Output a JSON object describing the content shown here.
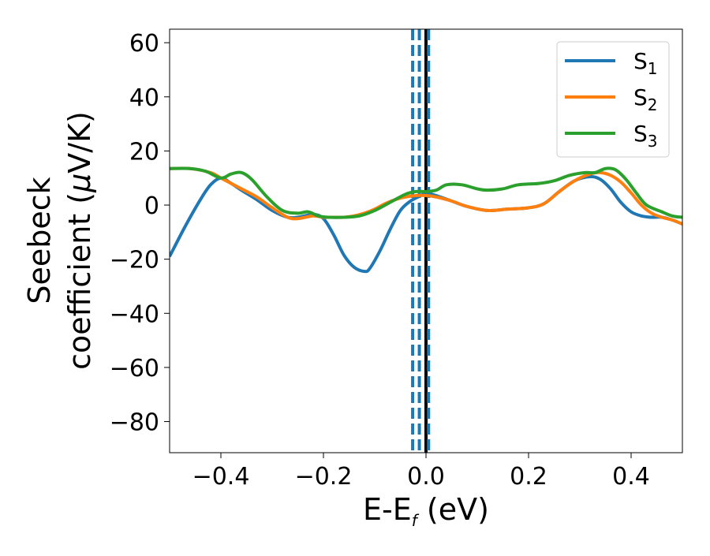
{
  "chart_data": {
    "type": "line",
    "xlabel": "E-E",
    "xlabel_sub": "f",
    "xlabel_tail": " (eV)",
    "ylabel_line1": "Seebeck",
    "ylabel_line2_prefix": "coefficient  (",
    "ylabel_line2_mu": "μ",
    "ylabel_line2_suffix": "V/K)",
    "xlim": [
      -0.5,
      0.5
    ],
    "ylim": [
      -91.5,
      65
    ],
    "xticks": [
      -0.4,
      -0.2,
      0.0,
      0.2,
      0.4
    ],
    "xtick_labels": [
      "−0.4",
      "−0.2",
      "0.0",
      "0.2",
      "0.4"
    ],
    "yticks": [
      -80,
      -60,
      -40,
      -20,
      0,
      20,
      40,
      60
    ],
    "ytick_labels": [
      "−80",
      "−60",
      "−40",
      "−20",
      "0",
      "20",
      "40",
      "60"
    ],
    "grid": false,
    "legend_placement": "top-right",
    "vertical_lines": [
      {
        "x": -0.026,
        "style": "dashed",
        "color": "#1f77b4"
      },
      {
        "x": -0.013,
        "style": "dashed",
        "color": "#1f77b4"
      },
      {
        "x": 0.0,
        "style": "solid",
        "color": "#000000"
      },
      {
        "x": 0.005,
        "style": "dashed",
        "color": "#1f77b4"
      }
    ],
    "series": [
      {
        "name": "S",
        "sub": "1",
        "color": "#1f77b4",
        "x": [
          -0.5,
          -0.47,
          -0.44,
          -0.42,
          -0.4,
          -0.38,
          -0.36,
          -0.33,
          -0.3,
          -0.27,
          -0.25,
          -0.22,
          -0.2,
          -0.18,
          -0.16,
          -0.14,
          -0.12,
          -0.11,
          -0.09,
          -0.07,
          -0.05,
          -0.03,
          -0.01,
          0.0,
          0.02,
          0.05,
          0.08,
          0.12,
          0.16,
          0.2,
          0.23,
          0.26,
          0.29,
          0.32,
          0.34,
          0.36,
          0.38,
          0.4,
          0.42,
          0.44,
          0.46,
          0.48,
          0.5
        ],
        "y": [
          -19,
          -8,
          2,
          7.5,
          10,
          8,
          5.5,
          2,
          -2,
          -4.5,
          -4.5,
          -3.5,
          -5,
          -11,
          -18.5,
          -23,
          -24.5,
          -23.5,
          -17,
          -9,
          -2,
          1.5,
          3.5,
          4.5,
          3.5,
          1.5,
          -0.5,
          -2,
          -1.5,
          -1,
          0.5,
          5,
          9,
          10.5,
          9.5,
          6,
          1,
          -2.5,
          -4,
          -4.5,
          -4.5,
          -5.5,
          -7
        ]
      },
      {
        "name": "S",
        "sub": "2",
        "color": "#ff7f0e",
        "x": [
          -0.5,
          -0.46,
          -0.42,
          -0.4,
          -0.38,
          -0.36,
          -0.33,
          -0.3,
          -0.27,
          -0.25,
          -0.22,
          -0.2,
          -0.18,
          -0.16,
          -0.14,
          -0.12,
          -0.1,
          -0.08,
          -0.06,
          -0.04,
          -0.02,
          0.0,
          0.02,
          0.05,
          0.08,
          0.12,
          0.16,
          0.2,
          0.23,
          0.26,
          0.29,
          0.32,
          0.34,
          0.36,
          0.38,
          0.4,
          0.42,
          0.44,
          0.46,
          0.48,
          0.5
        ],
        "y": [
          13.5,
          13.5,
          12,
          10,
          8,
          6,
          3,
          -1,
          -4.5,
          -5,
          -4,
          -4.5,
          -4.5,
          -4.5,
          -4,
          -3,
          -1.5,
          0.5,
          2,
          3,
          3.5,
          3.5,
          3,
          1.5,
          -0.5,
          -2,
          -1.5,
          -1,
          0.5,
          5,
          9,
          11.5,
          12,
          11,
          8.5,
          4.5,
          0,
          -3,
          -4.5,
          -5.5,
          -7
        ]
      },
      {
        "name": "S",
        "sub": "3",
        "color": "#2ca02c",
        "x": [
          -0.5,
          -0.46,
          -0.43,
          -0.4,
          -0.38,
          -0.36,
          -0.34,
          -0.31,
          -0.28,
          -0.25,
          -0.23,
          -0.21,
          -0.19,
          -0.16,
          -0.13,
          -0.1,
          -0.07,
          -0.04,
          -0.02,
          0.0,
          0.02,
          0.04,
          0.07,
          0.1,
          0.12,
          0.15,
          0.18,
          0.22,
          0.25,
          0.28,
          0.31,
          0.33,
          0.35,
          0.37,
          0.39,
          0.41,
          0.43,
          0.46,
          0.48,
          0.5
        ],
        "y": [
          13.5,
          13.5,
          12.5,
          10,
          11.5,
          12,
          9.5,
          3,
          -2,
          -3,
          -2.5,
          -4,
          -4.5,
          -4.5,
          -4,
          -2,
          1,
          4,
          5,
          5,
          5.5,
          7.5,
          7.5,
          6,
          5.5,
          6,
          7.5,
          8,
          9,
          11,
          12,
          12,
          13.5,
          13,
          9.5,
          4.5,
          0,
          -2.5,
          -4,
          -4.5
        ]
      }
    ]
  }
}
